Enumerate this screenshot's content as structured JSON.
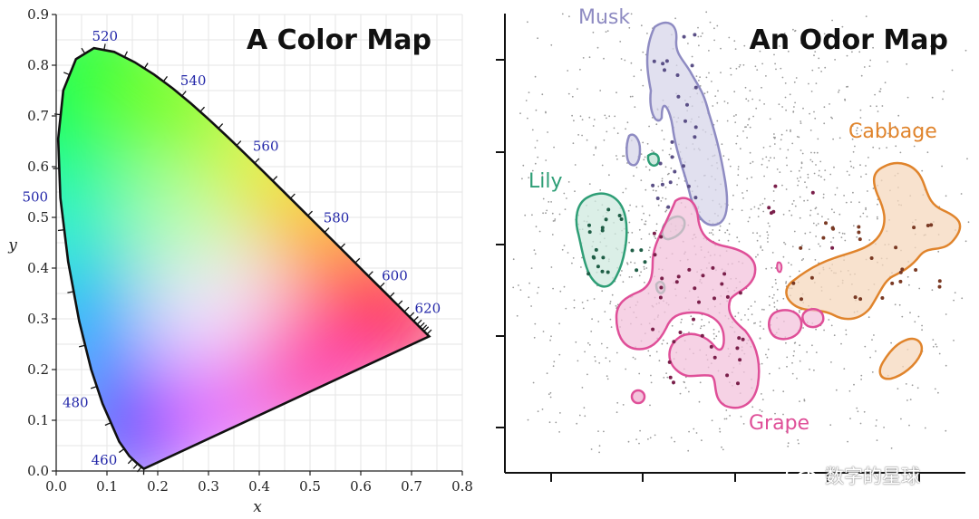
{
  "left": {
    "title": "A Color Map",
    "xlabel": "x",
    "ylabel": "y",
    "x_ticks": [
      "0.0",
      "0.1",
      "0.2",
      "0.3",
      "0.4",
      "0.5",
      "0.6",
      "0.7",
      "0.8"
    ],
    "y_ticks": [
      "0.0",
      "0.1",
      "0.2",
      "0.3",
      "0.4",
      "0.5",
      "0.6",
      "0.7",
      "0.8",
      "0.9"
    ],
    "wavelength_labels": [
      {
        "text": "460",
        "x": 0.144,
        "y": 0.03
      },
      {
        "text": "480",
        "x": 0.091,
        "y": 0.133
      },
      {
        "text": "500",
        "x": 0.008,
        "y": 0.538
      },
      {
        "text": "520",
        "x": 0.074,
        "y": 0.834
      },
      {
        "text": "540",
        "x": 0.23,
        "y": 0.754
      },
      {
        "text": "560",
        "x": 0.373,
        "y": 0.624
      },
      {
        "text": "580",
        "x": 0.512,
        "y": 0.487
      },
      {
        "text": "600",
        "x": 0.627,
        "y": 0.372
      },
      {
        "text": "620",
        "x": 0.692,
        "y": 0.308
      }
    ]
  },
  "right": {
    "title": "An Odor Map",
    "clusters": [
      {
        "name": "Musk",
        "color": "#8e8bc2",
        "fill": "#d7d5ea"
      },
      {
        "name": "Lily",
        "color": "#2e9e76",
        "fill": "#cfe9df"
      },
      {
        "name": "Cabbage",
        "color": "#e0842c",
        "fill": "#f6d8bd"
      },
      {
        "name": "Grape",
        "color": "#df4f98",
        "fill": "#f3c3dc"
      }
    ]
  },
  "watermark": "数字的星球"
}
